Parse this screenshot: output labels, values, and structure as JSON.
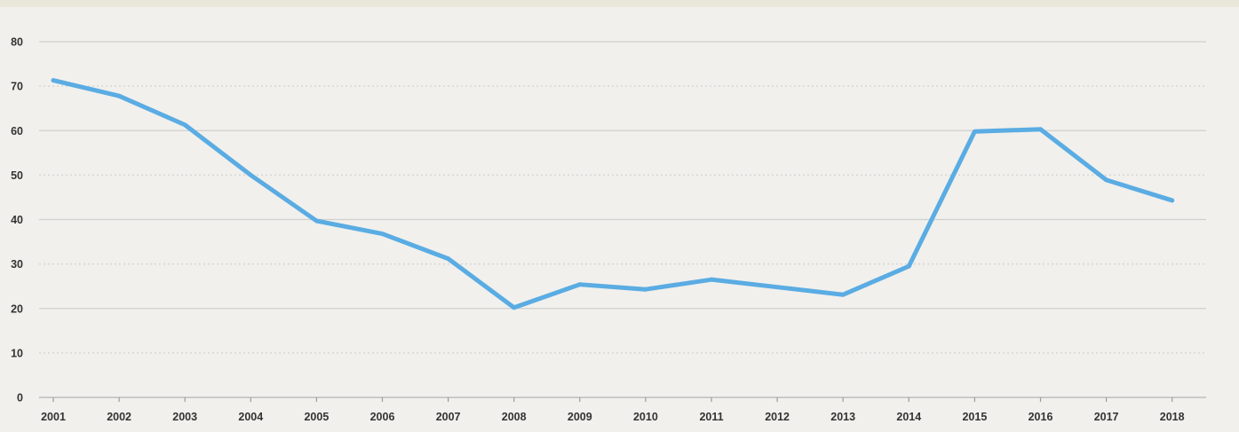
{
  "chart_data": {
    "type": "line",
    "title": "",
    "xlabel": "",
    "ylabel": "",
    "ylim": [
      0,
      80
    ],
    "y_major_ticks": [
      0,
      20,
      40,
      60,
      80
    ],
    "y_tick_labels": [
      "0",
      "10",
      "20",
      "30",
      "40",
      "50",
      "60",
      "70",
      "80"
    ],
    "grid": "horizontal, solid at 20-unit lines, dotted at 10-unit lines",
    "x": [
      "2001",
      "2002",
      "2003",
      "2004",
      "2005",
      "2006",
      "2007",
      "2008",
      "2009",
      "2010",
      "2011",
      "2012",
      "2013",
      "2014",
      "2015",
      "2016",
      "2017",
      "2018"
    ],
    "series": [
      {
        "values": [
          71.3,
          67.8,
          61.3,
          50.0,
          39.7,
          36.8,
          31.2,
          20.2,
          25.4,
          24.3,
          26.5,
          24.8,
          23.1,
          29.5,
          59.8,
          60.3,
          48.9,
          44.3
        ],
        "color": "#5aace3"
      }
    ],
    "background_color": "#f1f0ec"
  }
}
